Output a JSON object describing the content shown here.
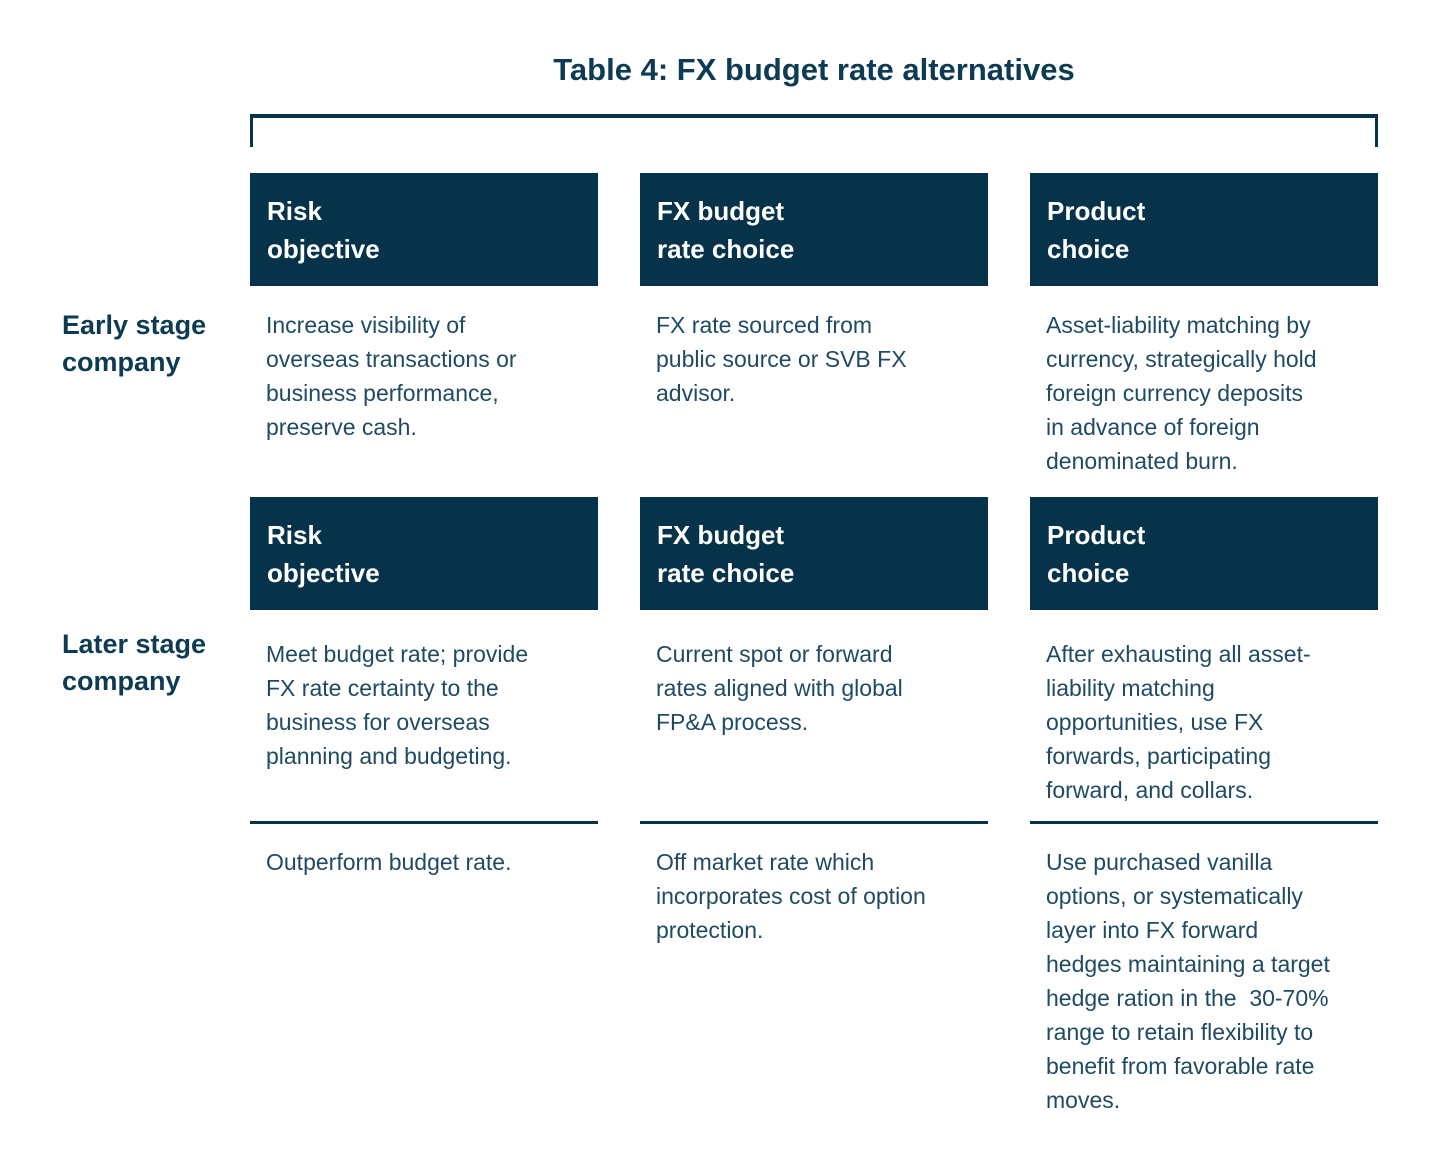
{
  "title": "Table 4: FX budget rate alternatives",
  "colors": {
    "navy": "#06334A",
    "heading": "#0D3B53",
    "body-text": "#1F4A63",
    "header-text": "#FFFFFF",
    "background": "#FFFFFF"
  },
  "column_headers": {
    "risk": "Risk\nobjective",
    "fx_budget": "FX budget\nrate choice",
    "product": "Product\nchoice"
  },
  "row_groups": [
    {
      "label": "Early stage\ncompany",
      "cells": {
        "risk": "Increase visibility of\noverseas transactions or\nbusiness performance,\npreserve cash.",
        "fx_budget": "FX rate sourced from\npublic source or SVB FX\nadvisor.",
        "product": "Asset-liability matching by\ncurrency, strategically hold\nforeign currency deposits\nin advance of foreign\ndenominated burn."
      }
    },
    {
      "label": "Later stage\ncompany",
      "cells": {
        "risk": "Meet budget rate; provide\nFX rate certainty to the\nbusiness for overseas\nplanning and budgeting.",
        "fx_budget": "Current spot or forward\nrates aligned with global\nFP&A process.",
        "product": "After exhausting all asset-\nliability matching\nopportunities, use FX\nforwards, participating\nforward, and collars."
      },
      "secondary_cells": {
        "risk": "Outperform budget rate.",
        "fx_budget": "Off market rate which\nincorporates cost of option\nprotection.",
        "product": "Use purchased vanilla\noptions, or systematically\nlayer into FX forward\nhedges maintaining a target\nhedge ration in the  30-70%\nrange to retain flexibility to\nbenefit from favorable rate\nmoves."
      }
    }
  ]
}
